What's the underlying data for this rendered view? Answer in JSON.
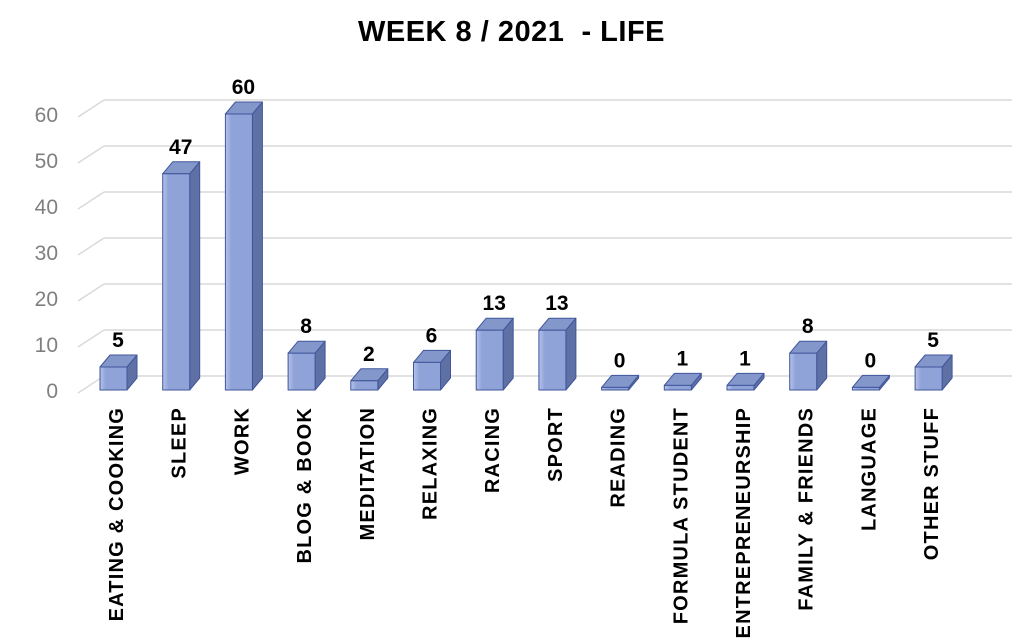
{
  "colors": {
    "background": "#ffffff",
    "title_text": "#000000",
    "bar_front": "#8fa3d9",
    "bar_front_light": "#b6c2ea",
    "bar_top": "#8497cb",
    "bar_side": "#5e70a4",
    "bar_edge": "#40569b",
    "gridline": "#d9d9d9",
    "tick_label": "#7f7f7f",
    "value_label": "#000000",
    "category_label": "#000000"
  },
  "chart_data": {
    "type": "bar",
    "style": "3d-column",
    "title": "WEEK 8 / 2021  - LIFE",
    "categories": [
      "EATING & COOKING",
      "SLEEP",
      "WORK",
      "BLOG & BOOK",
      "MEDITATION",
      "RELAXING",
      "RACING",
      "SPORT",
      "READING",
      "FORMULA STUDENT",
      "ENTREPRENEURSHIP",
      "FAMILY & FRIENDS",
      "LANGUAGE",
      "OTHER STUFF"
    ],
    "values": [
      5,
      47,
      60,
      8,
      2,
      6,
      13,
      13,
      0,
      1,
      1,
      8,
      0,
      5
    ],
    "data_labels_shown": true,
    "xlabel": "",
    "ylabel": "",
    "ylim": [
      0,
      60
    ],
    "yticks": [
      0,
      10,
      20,
      30,
      40,
      50,
      60
    ],
    "grid": true,
    "legend": "none"
  }
}
